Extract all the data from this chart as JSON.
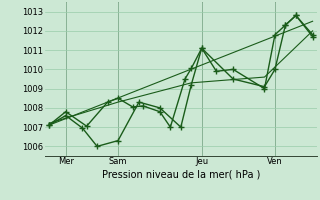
{
  "xlabel": "Pression niveau de la mer( hPa )",
  "background_color": "#cce8d4",
  "grid_color": "#99ccaa",
  "line_color": "#1a5c1a",
  "ylim": [
    1005.5,
    1013.5
  ],
  "xlim": [
    0,
    13
  ],
  "yticks": [
    1006,
    1007,
    1008,
    1009,
    1010,
    1011,
    1012,
    1013
  ],
  "xtick_positions": [
    1.0,
    3.5,
    7.5,
    11.0
  ],
  "xtick_labels": [
    "Mer",
    "Sam",
    "Jeu",
    "Ven"
  ],
  "vlines": [
    1.0,
    3.5,
    7.5,
    11.0
  ],
  "series": [
    {
      "x": [
        0.2,
        1.0,
        2.0,
        3.0,
        3.5,
        4.2,
        4.7,
        5.5,
        6.0,
        6.7,
        7.0,
        7.5,
        8.2,
        9.0,
        10.5,
        11.0,
        11.5,
        12.0,
        12.8
      ],
      "y": [
        1007.1,
        1007.8,
        1007.05,
        1008.3,
        1008.5,
        1008.05,
        1008.1,
        1007.8,
        1007.0,
        1009.5,
        1010.05,
        1011.1,
        1009.9,
        1010.0,
        1009.0,
        1011.8,
        1012.3,
        1012.8,
        1011.8
      ],
      "marker": "+",
      "lw": 1.0,
      "ms": 4
    },
    {
      "x": [
        0.2,
        1.0,
        1.8,
        2.5,
        3.5,
        4.5,
        5.5,
        6.5,
        7.0,
        7.5,
        9.0,
        10.5,
        11.0,
        11.5,
        12.0,
        12.8
      ],
      "y": [
        1007.1,
        1007.6,
        1006.95,
        1006.0,
        1006.3,
        1008.3,
        1008.0,
        1007.0,
        1009.2,
        1011.1,
        1009.5,
        1009.1,
        1010.0,
        1012.3,
        1012.8,
        1011.7
      ],
      "marker": "+",
      "lw": 1.0,
      "ms": 4
    },
    {
      "x": [
        0.2,
        3.5,
        7.0,
        10.5,
        12.8
      ],
      "y": [
        1007.2,
        1008.3,
        1009.3,
        1009.6,
        1012.0
      ],
      "marker": null,
      "lw": 0.8,
      "ms": 0
    },
    {
      "x": [
        0.2,
        12.8
      ],
      "y": [
        1007.1,
        1012.5
      ],
      "marker": null,
      "lw": 0.8,
      "ms": 0
    }
  ]
}
